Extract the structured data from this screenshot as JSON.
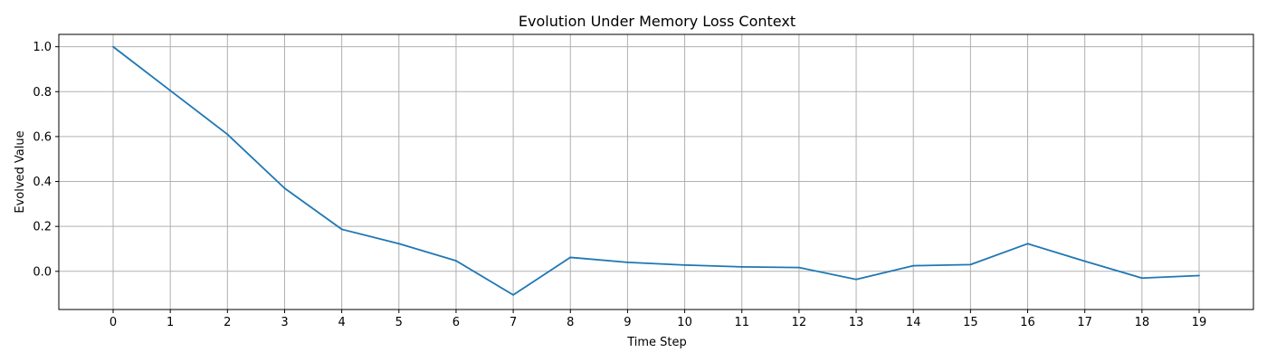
{
  "chart_data": {
    "type": "line",
    "title": "Evolution Under Memory Loss Context",
    "xlabel": "Time Step",
    "ylabel": "Evolved Value",
    "x": [
      0,
      1,
      2,
      3,
      4,
      5,
      6,
      7,
      8,
      9,
      10,
      11,
      12,
      13,
      14,
      15,
      16,
      17,
      18,
      19
    ],
    "xticks": [
      "0",
      "1",
      "2",
      "3",
      "4",
      "5",
      "6",
      "7",
      "8",
      "9",
      "10",
      "11",
      "12",
      "13",
      "14",
      "15",
      "16",
      "17",
      "18",
      "19"
    ],
    "yticks": [
      "0.0",
      "0.2",
      "0.4",
      "0.6",
      "0.8",
      "1.0"
    ],
    "ytick_values": [
      0.0,
      0.2,
      0.4,
      0.6,
      0.8,
      1.0
    ],
    "xlim": [
      -0.95,
      19.95
    ],
    "ylim": [
      -0.17,
      1.055
    ],
    "grid": true,
    "series": [
      {
        "color": "#1f77b4",
        "values": [
          1.0,
          0.805,
          0.61,
          0.37,
          0.187,
          0.123,
          0.047,
          -0.105,
          0.062,
          0.04,
          0.028,
          0.02,
          0.017,
          -0.036,
          0.025,
          0.03,
          0.123,
          0.045,
          -0.03,
          -0.019
        ]
      }
    ]
  }
}
